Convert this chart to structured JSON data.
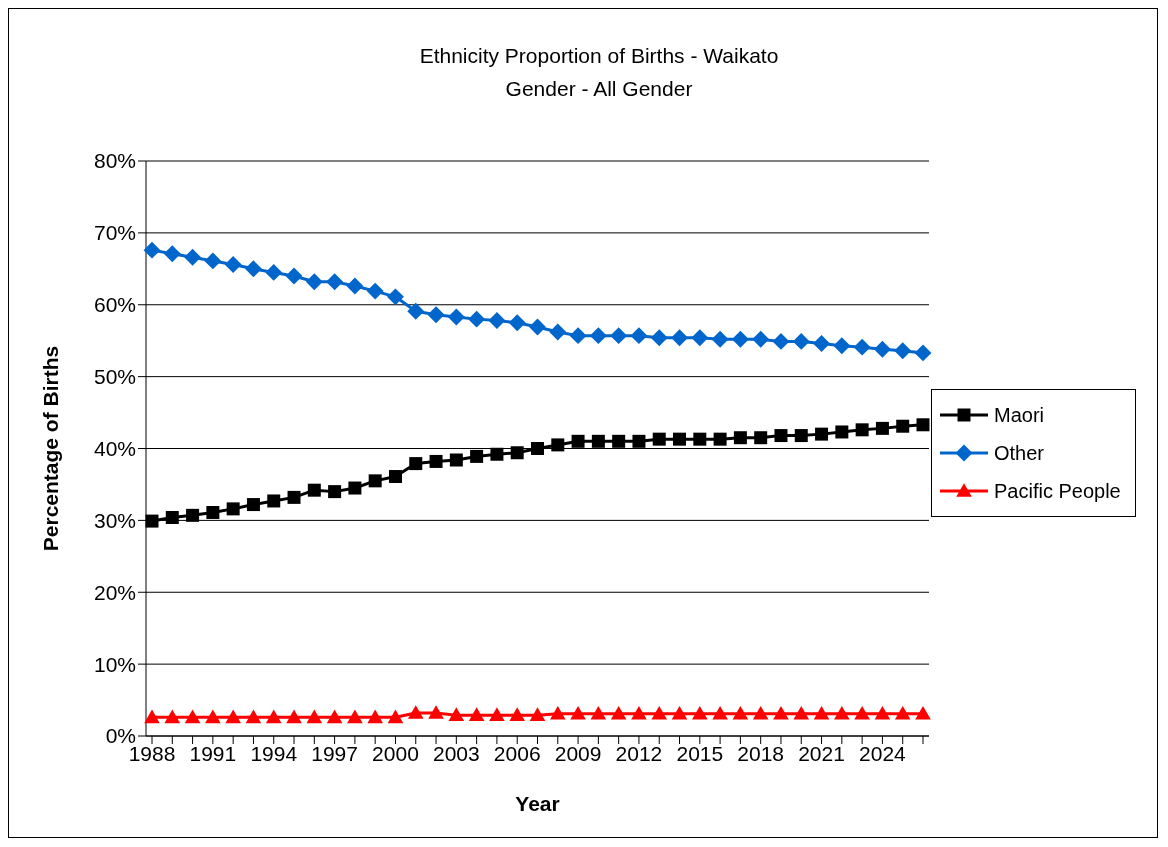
{
  "chart_data": {
    "type": "line",
    "title": "Ethnicity Proportion of Births - Waikato",
    "subtitle": "Gender - All Gender",
    "xlabel": "Year",
    "ylabel": "Percentage of Births",
    "categories": [
      "1988",
      null,
      null,
      "1991",
      null,
      null,
      "1994",
      null,
      null,
      "1997",
      null,
      null,
      "2000",
      null,
      null,
      "2003",
      null,
      null,
      "2006",
      null,
      null,
      "2009",
      null,
      null,
      "2012",
      null,
      null,
      "2015",
      null,
      null,
      "2018",
      null,
      null,
      "2021",
      null,
      null,
      "2024",
      null,
      null
    ],
    "series": [
      {
        "name": "Maori",
        "color": "#000000",
        "marker": "square",
        "values": [
          29.9,
          30.4,
          30.7,
          31.1,
          31.6,
          32.2,
          32.7,
          33.2,
          34.2,
          34.0,
          34.5,
          35.5,
          36.1,
          37.9,
          38.2,
          38.4,
          38.9,
          39.2,
          39.4,
          40.0,
          40.5,
          41.0,
          41.0,
          41.0,
          41.0,
          41.3,
          41.3,
          41.3,
          41.3,
          41.5,
          41.5,
          41.8,
          41.8,
          42.0,
          42.3,
          42.6,
          42.8,
          43.1,
          43.3
        ]
      },
      {
        "name": "Other",
        "color": "#0066cc",
        "marker": "diamond",
        "values": [
          67.6,
          67.1,
          66.6,
          66.1,
          65.6,
          65.0,
          64.5,
          64.0,
          63.2,
          63.2,
          62.6,
          61.9,
          61.1,
          59.1,
          58.6,
          58.3,
          58.0,
          57.8,
          57.5,
          56.9,
          56.2,
          55.7,
          55.7,
          55.7,
          55.7,
          55.4,
          55.4,
          55.4,
          55.2,
          55.2,
          55.2,
          54.9,
          54.9,
          54.6,
          54.3,
          54.1,
          53.8,
          53.6,
          53.3
        ]
      },
      {
        "name": "Pacific People",
        "color": "#ff0000",
        "marker": "triangle",
        "values": [
          2.6,
          2.6,
          2.6,
          2.6,
          2.6,
          2.6,
          2.6,
          2.6,
          2.6,
          2.6,
          2.6,
          2.6,
          2.6,
          3.2,
          3.2,
          2.9,
          2.9,
          2.9,
          2.9,
          2.9,
          3.1,
          3.1,
          3.1,
          3.1,
          3.1,
          3.1,
          3.1,
          3.1,
          3.1,
          3.1,
          3.1,
          3.1,
          3.1,
          3.1,
          3.1,
          3.1,
          3.1,
          3.1,
          3.1
        ]
      }
    ],
    "ylim": [
      0,
      80
    ],
    "yticks": [
      {
        "value": 0,
        "label": "0%"
      },
      {
        "value": 10,
        "label": "10%"
      },
      {
        "value": 20,
        "label": "20%"
      },
      {
        "value": 30,
        "label": "30%"
      },
      {
        "value": 40,
        "label": "40%"
      },
      {
        "value": 50,
        "label": "50%"
      },
      {
        "value": 60,
        "label": "60%"
      },
      {
        "value": 70,
        "label": "70%"
      },
      {
        "value": 80,
        "label": "80%"
      }
    ],
    "grid": "y",
    "legend": "right",
    "line_style": "solid"
  }
}
